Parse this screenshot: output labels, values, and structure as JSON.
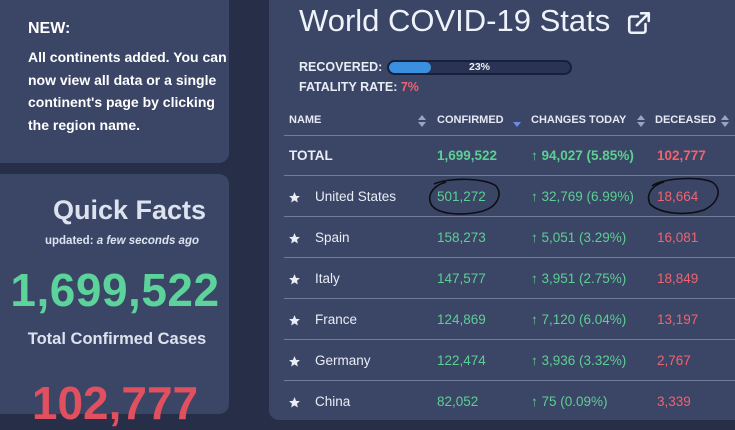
{
  "news": {
    "title": "NEW:",
    "body": "All continents added. You can now view all data or a single continent's page by clicking the region name."
  },
  "quick_facts": {
    "title": "Quick Facts",
    "updated_label": "updated:",
    "updated_value": "a few seconds ago",
    "total_confirmed": "1,699,522",
    "total_confirmed_label": "Total Confirmed Cases",
    "total_deaths": "102,777"
  },
  "main": {
    "title": "World COVID-19 Stats",
    "external_link_icon": "external-link-icon",
    "recovered_label": "RECOVERED:",
    "recovered_pct": "23%",
    "recovered_fraction": 0.23,
    "fatality_label": "FATALITY RATE:",
    "fatality_value": "7%"
  },
  "table": {
    "columns": [
      {
        "label": "NAME",
        "sort_icon": "sort-up-down-icon"
      },
      {
        "label": "CONFIRMED",
        "sort_icon": "sort-desc-icon"
      },
      {
        "label": "CHANGES TODAY",
        "sort_icon": "sort-up-down-icon"
      },
      {
        "label": "DECEASED",
        "sort_icon": "sort-up-down-icon"
      }
    ],
    "total": {
      "name": "TOTAL",
      "confirmed": "1,699,522",
      "change": "↑ 94,027 (5.85%)",
      "deceased": "102,777"
    },
    "rows": [
      {
        "name": "United States",
        "confirmed": "501,272",
        "change": "↑ 32,769 (6.99%)",
        "deceased": "18,664"
      },
      {
        "name": "Spain",
        "confirmed": "158,273",
        "change": "↑ 5,051 (3.29%)",
        "deceased": "16,081"
      },
      {
        "name": "Italy",
        "confirmed": "147,577",
        "change": "↑ 3,951 (2.75%)",
        "deceased": "18,849"
      },
      {
        "name": "France",
        "confirmed": "124,869",
        "change": "↑ 7,120 (6.04%)",
        "deceased": "13,197"
      },
      {
        "name": "Germany",
        "confirmed": "122,474",
        "change": "↑ 3,936 (3.32%)",
        "deceased": "2,767"
      },
      {
        "name": "China",
        "confirmed": "82,052",
        "change": "↑ 75 (0.09%)",
        "deceased": "3,339"
      }
    ]
  },
  "colors": {
    "background": "#262e48",
    "card": "#3b4566",
    "confirmed_green": "#5ccf93",
    "deceased_red": "#ef6470",
    "recovered_blue": "#3b8fdf"
  }
}
